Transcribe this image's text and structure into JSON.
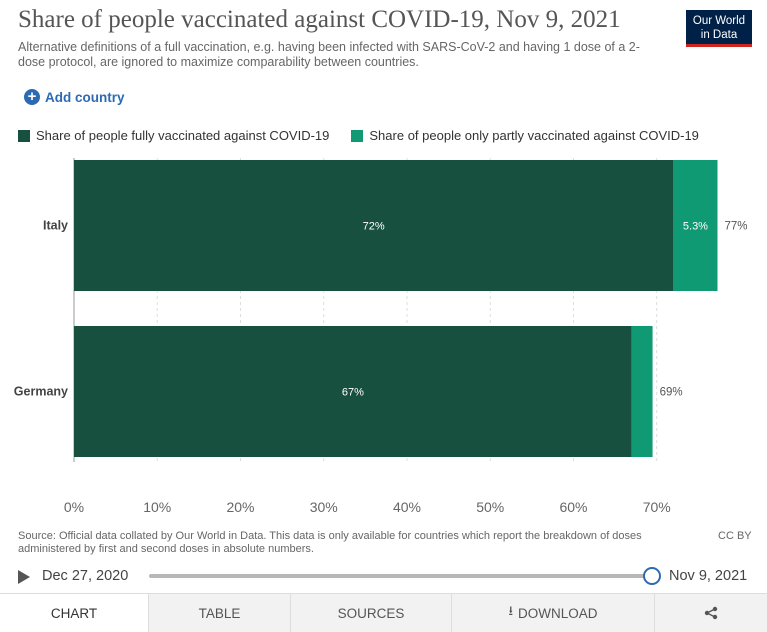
{
  "header": {
    "title": "Share of people vaccinated against COVID-19, Nov 9, 2021",
    "subtitle": "Alternative definitions of a full vaccination, e.g. having been infected with SARS-CoV-2 and having 1 dose of a 2-dose protocol, are ignored to maximize comparability between countries.",
    "logo_line1": "Our World",
    "logo_line2": "in Data",
    "add_country": "Add country"
  },
  "colors": {
    "fully": "#18503f",
    "partly": "#109a73",
    "brand": "#002147",
    "accent": "#2d6ab2"
  },
  "icons": {
    "add": "plus-circle-icon",
    "play": "play-icon",
    "download": "download-icon",
    "share": "share-icon"
  },
  "chart_data": {
    "type": "bar",
    "orientation": "horizontal",
    "stacked": true,
    "categories": [
      "Italy",
      "Germany"
    ],
    "series": [
      {
        "name": "Share of people fully vaccinated against COVID-19",
        "values": [
          72,
          67
        ],
        "labels": [
          "72%",
          "67%"
        ]
      },
      {
        "name": "Share of people only partly vaccinated against COVID-19",
        "values": [
          5.3,
          2.5
        ],
        "labels": [
          "5.3%",
          ""
        ]
      }
    ],
    "totals": [
      77,
      69
    ],
    "total_labels": [
      "77%",
      "69%"
    ],
    "xlim": [
      0,
      77
    ],
    "xticks": [
      0,
      10,
      20,
      30,
      40,
      50,
      60,
      70
    ],
    "xtick_labels": [
      "0%",
      "10%",
      "20%",
      "30%",
      "40%",
      "50%",
      "60%",
      "70%"
    ],
    "grid": true,
    "legend": "top"
  },
  "footer": {
    "source": "Source: Official data collated by Our World in Data. This data is only available for countries which report the breakdown of doses administered by first and second doses in absolute numbers.",
    "license": "CC BY"
  },
  "timeline": {
    "start": "Dec 27, 2020",
    "end": "Nov 9, 2021",
    "position": 1.0
  },
  "tabs": [
    {
      "label": "CHART",
      "active": true
    },
    {
      "label": "TABLE",
      "active": false
    },
    {
      "label": "SOURCES",
      "active": false
    },
    {
      "label": "DOWNLOAD",
      "active": false
    }
  ]
}
